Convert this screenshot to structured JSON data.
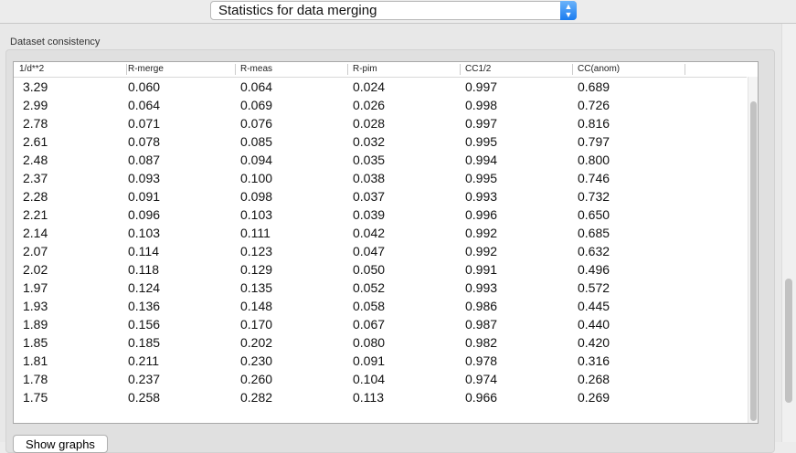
{
  "selector": {
    "value": "Statistics for data merging",
    "icon": "updown-chevron-icon"
  },
  "group": {
    "title": "Dataset consistency"
  },
  "table": {
    "columns": [
      "1/d**2",
      "R-merge",
      "R-meas",
      "R-pim",
      "CC1/2",
      "CC(anom)"
    ],
    "rows": [
      [
        "3.29",
        "0.060",
        "0.064",
        "0.024",
        "0.997",
        "0.689"
      ],
      [
        "2.99",
        "0.064",
        "0.069",
        "0.026",
        "0.998",
        "0.726"
      ],
      [
        "2.78",
        "0.071",
        "0.076",
        "0.028",
        "0.997",
        "0.816"
      ],
      [
        "2.61",
        "0.078",
        "0.085",
        "0.032",
        "0.995",
        "0.797"
      ],
      [
        "2.48",
        "0.087",
        "0.094",
        "0.035",
        "0.994",
        "0.800"
      ],
      [
        "2.37",
        "0.093",
        "0.100",
        "0.038",
        "0.995",
        "0.746"
      ],
      [
        "2.28",
        "0.091",
        "0.098",
        "0.037",
        "0.993",
        "0.732"
      ],
      [
        "2.21",
        "0.096",
        "0.103",
        "0.039",
        "0.996",
        "0.650"
      ],
      [
        "2.14",
        "0.103",
        "0.111",
        "0.042",
        "0.992",
        "0.685"
      ],
      [
        "2.07",
        "0.114",
        "0.123",
        "0.047",
        "0.992",
        "0.632"
      ],
      [
        "2.02",
        "0.118",
        "0.129",
        "0.050",
        "0.991",
        "0.496"
      ],
      [
        "1.97",
        "0.124",
        "0.135",
        "0.052",
        "0.993",
        "0.572"
      ],
      [
        "1.93",
        "0.136",
        "0.148",
        "0.058",
        "0.986",
        "0.445"
      ],
      [
        "1.89",
        "0.156",
        "0.170",
        "0.067",
        "0.987",
        "0.440"
      ],
      [
        "1.85",
        "0.185",
        "0.202",
        "0.080",
        "0.982",
        "0.420"
      ],
      [
        "1.81",
        "0.211",
        "0.230",
        "0.091",
        "0.978",
        "0.316"
      ],
      [
        "1.78",
        "0.237",
        "0.260",
        "0.104",
        "0.974",
        "0.268"
      ],
      [
        "1.75",
        "0.258",
        "0.282",
        "0.113",
        "0.966",
        "0.269"
      ]
    ]
  },
  "buttons": {
    "show_graphs": "Show graphs"
  }
}
